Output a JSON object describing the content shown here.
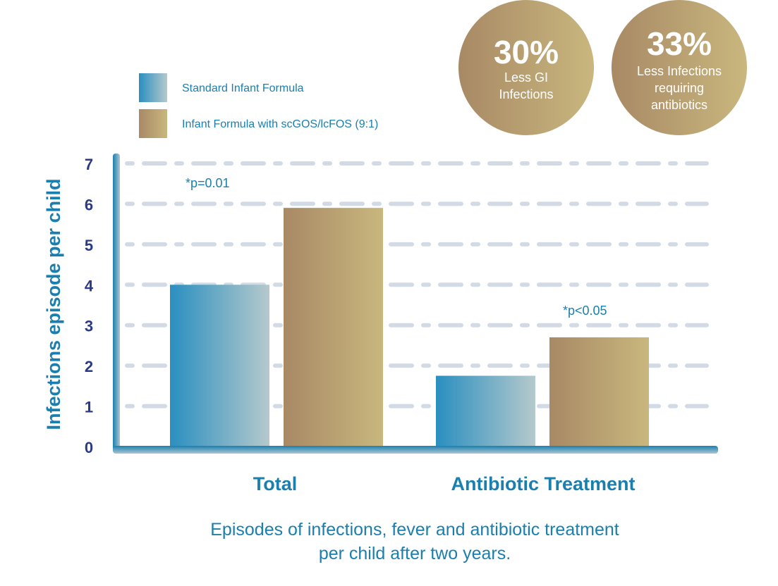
{
  "chart_data": {
    "type": "bar",
    "title": "Episodes of infections, fever and antibiotic treatment per child after two years.",
    "title_lines": [
      "Episodes of infections, fever and antibiotic treatment",
      "per child after two years."
    ],
    "xlabel": "",
    "ylabel": "Infections episode per child",
    "ylim": [
      0,
      7
    ],
    "yticks": [
      "0",
      "1",
      "2",
      "3",
      "4",
      "5",
      "6",
      "7"
    ],
    "grid": true,
    "legend_position": "top-left",
    "categories": [
      "Total",
      "Antibiotic Treatment"
    ],
    "series": [
      {
        "name": "Standard Infant Formula",
        "values": [
          4.0,
          1.75
        ],
        "colors": [
          "#2a8fc0",
          "#b5c9cc"
        ]
      },
      {
        "name": "Infant Formula with scGOS/lcFOS (9:1)",
        "values": [
          5.9,
          2.7
        ],
        "colors": [
          "#a88965",
          "#c9b77e"
        ]
      }
    ],
    "annotations": [
      "*p=0.01",
      "*p<0.05"
    ]
  },
  "badges": [
    {
      "value": "30%",
      "lines": [
        "Less GI",
        "Infections"
      ]
    },
    {
      "value": "33%",
      "lines": [
        "Less Infections",
        "requiring",
        "antibiotics"
      ]
    }
  ],
  "colors": {
    "text_blue": "#1a7fae",
    "tick_navy": "#2a3a86",
    "grid": "#d2dbe5",
    "axis": "#1a7fae"
  }
}
